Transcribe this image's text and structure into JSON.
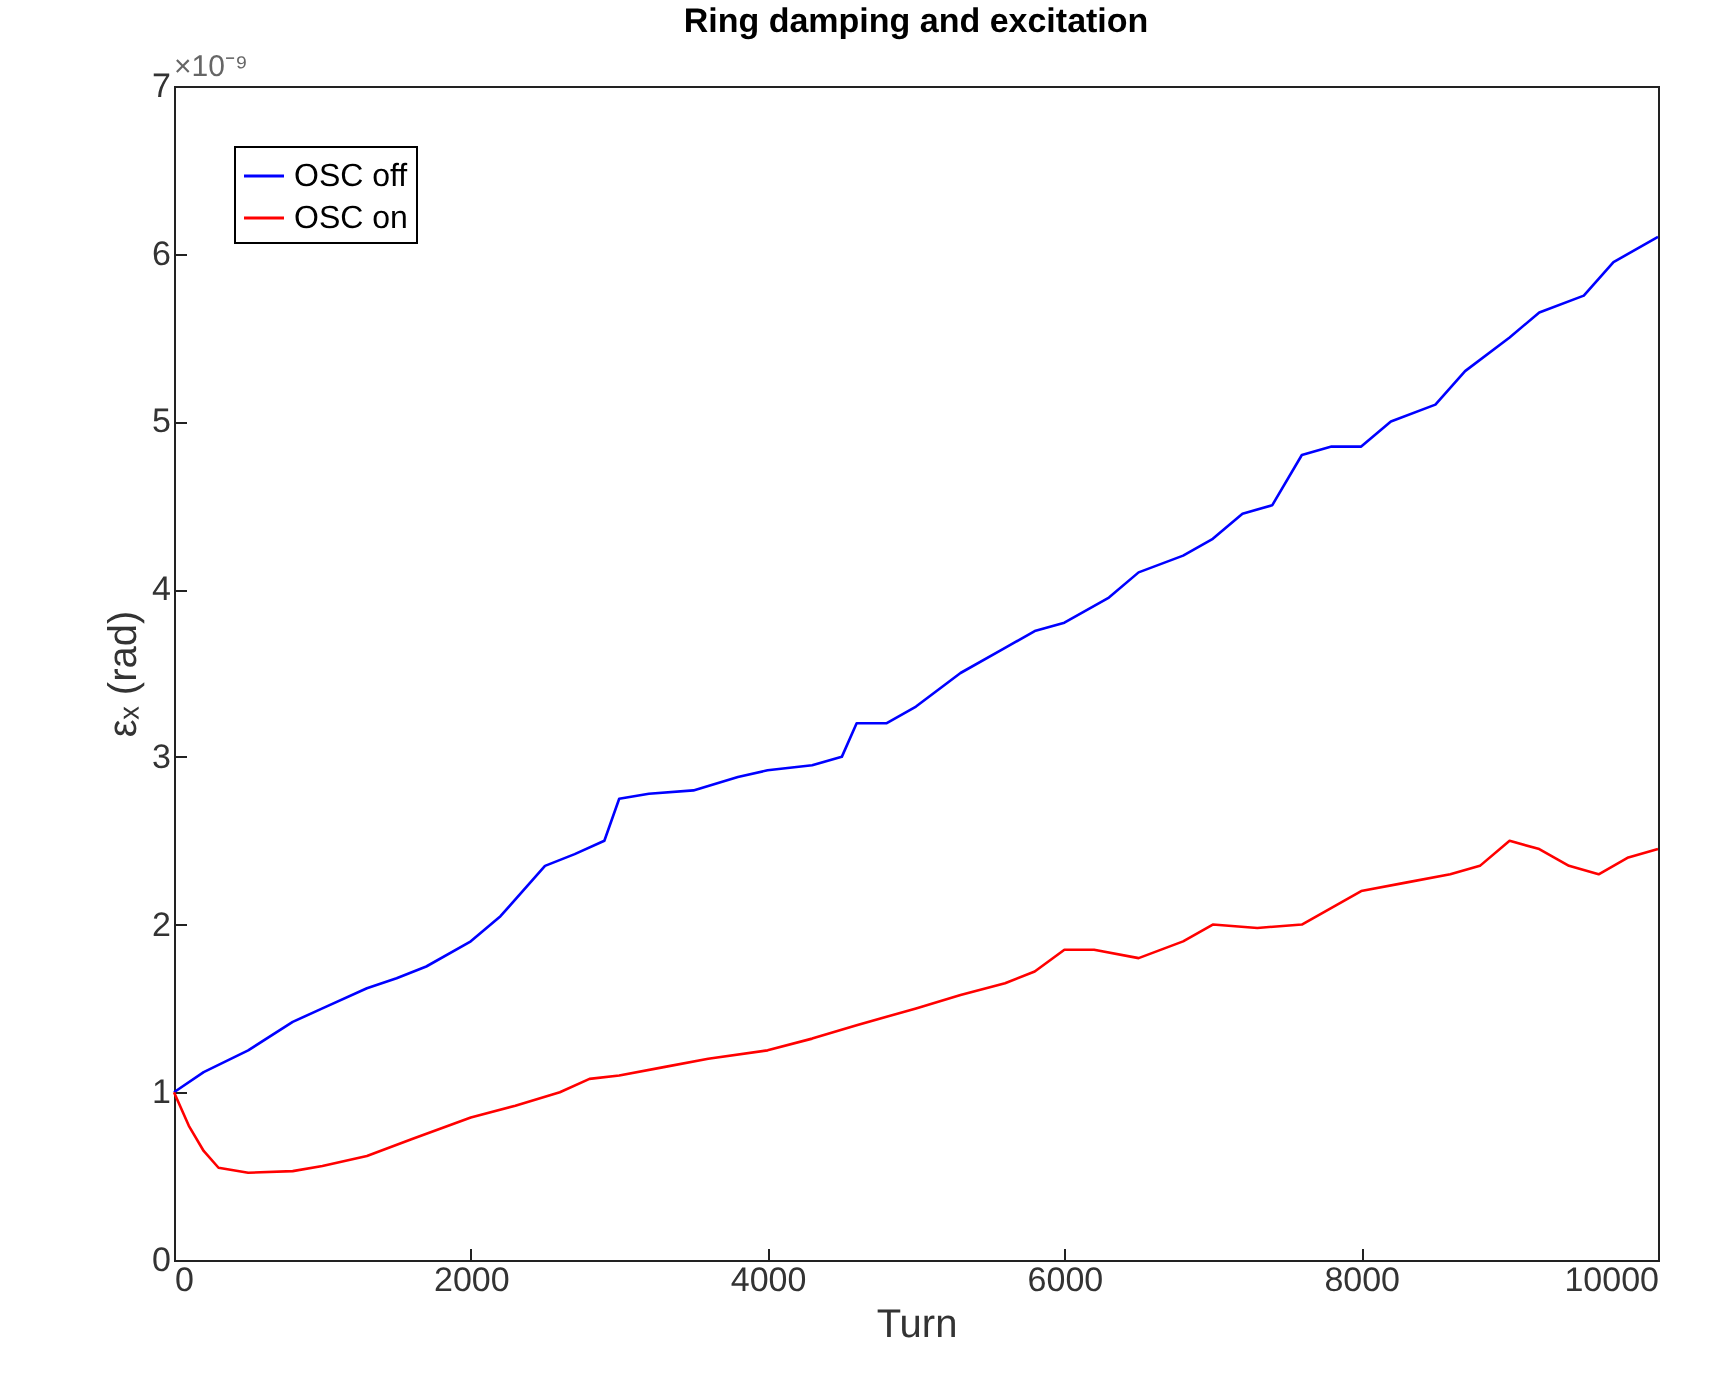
{
  "chart_data": {
    "type": "line",
    "title": "Ring damping and excitation",
    "xlabel": "Turn",
    "ylabel": "εₓ (rad)",
    "annotations": [
      "×10⁻⁹"
    ],
    "xlim": [
      0,
      10000
    ],
    "xticks": [
      0,
      2000,
      4000,
      6000,
      8000,
      10000
    ],
    "ylim": [
      0,
      7
    ],
    "yticks": [
      0,
      1,
      2,
      3,
      4,
      5,
      6,
      7
    ],
    "grid": false,
    "legend": "top left",
    "line_style": "solid",
    "marker": "none",
    "series": [
      {
        "name": "OSC off",
        "color": "#0000ff",
        "x": [
          0,
          200,
          500,
          800,
          1000,
          1300,
          1500,
          1700,
          2000,
          2200,
          2500,
          2700,
          2900,
          3000,
          3200,
          3500,
          3800,
          4000,
          4300,
          4500,
          4600,
          4800,
          5000,
          5300,
          5600,
          5800,
          6000,
          6300,
          6500,
          6800,
          7000,
          7200,
          7400,
          7600,
          7800,
          8000,
          8200,
          8500,
          8700,
          9000,
          9200,
          9500,
          9700,
          10000
        ],
        "values": [
          1.0,
          1.12,
          1.25,
          1.42,
          1.5,
          1.62,
          1.68,
          1.75,
          1.9,
          2.05,
          2.35,
          2.42,
          2.5,
          2.75,
          2.78,
          2.8,
          2.88,
          2.92,
          2.95,
          3.0,
          3.2,
          3.2,
          3.3,
          3.5,
          3.65,
          3.75,
          3.8,
          3.95,
          4.1,
          4.2,
          4.3,
          4.45,
          4.5,
          4.8,
          4.85,
          4.85,
          5.0,
          5.1,
          5.3,
          5.5,
          5.65,
          5.75,
          5.95,
          6.1
        ]
      },
      {
        "name": "OSC on",
        "color": "#ff0000",
        "x": [
          0,
          100,
          200,
          300,
          500,
          800,
          1000,
          1300,
          1600,
          2000,
          2300,
          2600,
          2800,
          3000,
          3300,
          3600,
          4000,
          4300,
          4600,
          5000,
          5300,
          5600,
          5800,
          6000,
          6200,
          6500,
          6800,
          7000,
          7300,
          7600,
          7800,
          8000,
          8300,
          8600,
          8800,
          9000,
          9200,
          9400,
          9600,
          9800,
          10000
        ],
        "values": [
          1.0,
          0.8,
          0.65,
          0.55,
          0.52,
          0.53,
          0.56,
          0.62,
          0.72,
          0.85,
          0.92,
          1.0,
          1.08,
          1.1,
          1.15,
          1.2,
          1.25,
          1.32,
          1.4,
          1.5,
          1.58,
          1.65,
          1.72,
          1.85,
          1.85,
          1.8,
          1.9,
          2.0,
          1.98,
          2.0,
          2.1,
          2.2,
          2.25,
          2.3,
          2.35,
          2.5,
          2.45,
          2.35,
          2.3,
          2.4,
          2.45
        ]
      }
    ]
  }
}
